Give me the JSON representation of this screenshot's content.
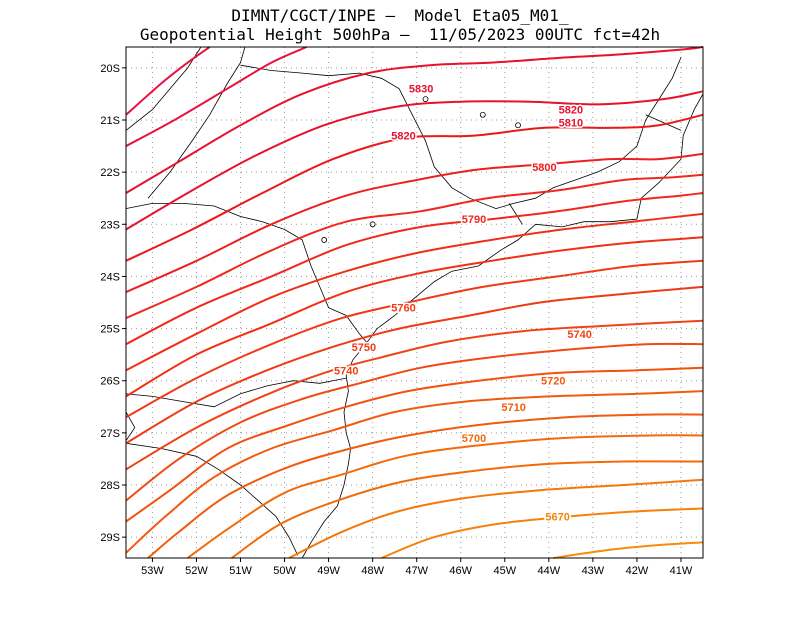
{
  "title": {
    "line1": "DIMNT/CGCT/INPE –  Model Eta05_M01_",
    "line2": "Geopotential Height 500hPa –  11/05/2023 00UTC fct=42h"
  },
  "map": {
    "lon_range": [
      -53.6,
      -40.5
    ],
    "lat_range": [
      -29.4,
      -19.6
    ],
    "lon_ticks": [
      {
        "value": -53,
        "label": "53W"
      },
      {
        "value": -52,
        "label": "52W"
      },
      {
        "value": -51,
        "label": "51W"
      },
      {
        "value": -50,
        "label": "50W"
      },
      {
        "value": -49,
        "label": "49W"
      },
      {
        "value": -48,
        "label": "48W"
      },
      {
        "value": -47,
        "label": "47W"
      },
      {
        "value": -46,
        "label": "46W"
      },
      {
        "value": -45,
        "label": "45W"
      },
      {
        "value": -44,
        "label": "44W"
      },
      {
        "value": -43,
        "label": "43W"
      },
      {
        "value": -42,
        "label": "42W"
      },
      {
        "value": -41,
        "label": "41W"
      }
    ],
    "lat_ticks": [
      {
        "value": -20,
        "label": "20S"
      },
      {
        "value": -21,
        "label": "21S"
      },
      {
        "value": -22,
        "label": "22S"
      },
      {
        "value": -23,
        "label": "23S"
      },
      {
        "value": -24,
        "label": "24S"
      },
      {
        "value": -25,
        "label": "25S"
      },
      {
        "value": -26,
        "label": "26S"
      },
      {
        "value": -27,
        "label": "27S"
      },
      {
        "value": -28,
        "label": "28S"
      },
      {
        "value": -29,
        "label": "29S"
      }
    ],
    "grid": "dotted",
    "contour_interval": 10,
    "contour_labels": [
      {
        "text": "5830",
        "color": "#e8112d",
        "lon": -46.9,
        "lat": -20.4
      },
      {
        "text": "5820",
        "color": "#e8112d",
        "lon": -43.5,
        "lat": -20.8
      },
      {
        "text": "5820",
        "color": "#e8112d",
        "lon": -47.3,
        "lat": -21.3
      },
      {
        "text": "5810",
        "color": "#e8112d",
        "lon": -43.5,
        "lat": -21.05
      },
      {
        "text": "5800",
        "color": "#ee1f1f",
        "lon": -44.1,
        "lat": -21.9
      },
      {
        "text": "5790",
        "color": "#f0281e",
        "lon": -45.7,
        "lat": -22.9
      },
      {
        "text": "5760",
        "color": "#f03a16",
        "lon": -47.3,
        "lat": -24.6
      },
      {
        "text": "5750",
        "color": "#f03a16",
        "lon": -48.2,
        "lat": -25.35
      },
      {
        "text": "5740",
        "color": "#f04216",
        "lon": -48.6,
        "lat": -25.8
      },
      {
        "text": "5740",
        "color": "#f04216",
        "lon": -43.3,
        "lat": -25.1
      },
      {
        "text": "5720",
        "color": "#f25a10",
        "lon": -43.9,
        "lat": -26.0
      },
      {
        "text": "5710",
        "color": "#f25a10",
        "lon": -44.8,
        "lat": -26.5
      },
      {
        "text": "5700",
        "color": "#f36a0a",
        "lon": -45.7,
        "lat": -27.1
      },
      {
        "text": "5670",
        "color": "#f5820a",
        "lon": -43.8,
        "lat": -28.6
      }
    ],
    "contours": [
      {
        "color": "#ea1140",
        "points": [
          [
            -53.6,
            -20.9
          ],
          [
            -52.8,
            -20.3
          ],
          [
            -52.2,
            -19.9
          ],
          [
            -51.7,
            -19.6
          ]
        ]
      },
      {
        "color": "#ea1140",
        "points": [
          [
            -53.6,
            -21.5
          ],
          [
            -52.5,
            -21.0
          ],
          [
            -51.3,
            -20.4
          ],
          [
            -50.3,
            -19.9
          ],
          [
            -49.5,
            -19.6
          ]
        ]
      },
      {
        "color": "#e8112d",
        "points": [
          [
            -53.6,
            -22.4
          ],
          [
            -52.4,
            -21.8
          ],
          [
            -51.0,
            -21.1
          ],
          [
            -49.6,
            -20.5
          ],
          [
            -48.1,
            -20.1
          ],
          [
            -46.7,
            -19.95
          ],
          [
            -45.3,
            -19.9
          ],
          [
            -43.6,
            -19.8
          ],
          [
            -42.5,
            -19.75
          ],
          [
            -41.0,
            -19.65
          ],
          [
            -40.5,
            -19.6
          ]
        ]
      },
      {
        "color": "#e8112d",
        "points": [
          [
            -53.6,
            -23.1
          ],
          [
            -52.2,
            -22.4
          ],
          [
            -50.7,
            -21.7
          ],
          [
            -49.1,
            -21.1
          ],
          [
            -47.5,
            -20.75
          ],
          [
            -46.0,
            -20.65
          ],
          [
            -44.4,
            -20.65
          ],
          [
            -42.9,
            -20.7
          ],
          [
            -41.4,
            -20.6
          ],
          [
            -40.5,
            -20.45
          ]
        ]
      },
      {
        "color": "#ea1818",
        "points": [
          [
            -53.6,
            -23.7
          ],
          [
            -52.1,
            -23.1
          ],
          [
            -50.5,
            -22.4
          ],
          [
            -48.9,
            -21.75
          ],
          [
            -47.3,
            -21.35
          ],
          [
            -45.7,
            -21.3
          ],
          [
            -44.1,
            -21.15
          ],
          [
            -42.5,
            -21.15
          ],
          [
            -41.5,
            -21.1
          ],
          [
            -40.5,
            -20.9
          ]
        ]
      },
      {
        "color": "#ee1f1f",
        "points": [
          [
            -53.6,
            -24.3
          ],
          [
            -52.0,
            -23.7
          ],
          [
            -50.3,
            -23.0
          ],
          [
            -48.6,
            -22.45
          ],
          [
            -47.0,
            -22.15
          ],
          [
            -45.6,
            -21.95
          ],
          [
            -44.1,
            -21.85
          ],
          [
            -42.6,
            -21.75
          ],
          [
            -41.5,
            -21.75
          ],
          [
            -40.5,
            -21.65
          ]
        ]
      },
      {
        "color": "#f0281e",
        "points": [
          [
            -53.6,
            -24.8
          ],
          [
            -52.0,
            -24.2
          ],
          [
            -50.3,
            -23.5
          ],
          [
            -48.6,
            -22.95
          ],
          [
            -46.9,
            -22.75
          ],
          [
            -45.4,
            -22.5
          ],
          [
            -43.8,
            -22.35
          ],
          [
            -42.3,
            -22.15
          ],
          [
            -41.2,
            -22.1
          ],
          [
            -40.5,
            -22.05
          ]
        ]
      },
      {
        "color": "#f0281e",
        "points": [
          [
            -53.6,
            -25.3
          ],
          [
            -52.0,
            -24.6
          ],
          [
            -50.3,
            -24.0
          ],
          [
            -48.6,
            -23.4
          ],
          [
            -46.9,
            -23.05
          ],
          [
            -45.3,
            -22.9
          ],
          [
            -43.8,
            -22.75
          ],
          [
            -42.2,
            -22.55
          ],
          [
            -41.0,
            -22.45
          ],
          [
            -40.5,
            -22.4
          ]
        ]
      },
      {
        "color": "#f03016",
        "points": [
          [
            -53.6,
            -25.8
          ],
          [
            -52.0,
            -25.1
          ],
          [
            -50.3,
            -24.4
          ],
          [
            -48.6,
            -23.9
          ],
          [
            -47.0,
            -23.55
          ],
          [
            -45.3,
            -23.3
          ],
          [
            -43.7,
            -23.1
          ],
          [
            -42.1,
            -22.95
          ],
          [
            -40.5,
            -22.8
          ]
        ]
      },
      {
        "color": "#f03016",
        "points": [
          [
            -53.6,
            -26.3
          ],
          [
            -52.0,
            -25.5
          ],
          [
            -50.3,
            -24.9
          ],
          [
            -48.6,
            -24.3
          ],
          [
            -47.0,
            -23.95
          ],
          [
            -45.3,
            -23.7
          ],
          [
            -43.7,
            -23.5
          ],
          [
            -42.1,
            -23.35
          ],
          [
            -40.5,
            -23.25
          ]
        ]
      },
      {
        "color": "#f03a16",
        "points": [
          [
            -53.6,
            -26.7
          ],
          [
            -52.0,
            -25.95
          ],
          [
            -50.3,
            -25.3
          ],
          [
            -48.7,
            -24.8
          ],
          [
            -47.2,
            -24.5
          ],
          [
            -45.5,
            -24.2
          ],
          [
            -43.8,
            -24.0
          ],
          [
            -42.1,
            -23.8
          ],
          [
            -40.5,
            -23.7
          ]
        ]
      },
      {
        "color": "#f03a16",
        "points": [
          [
            -53.6,
            -27.2
          ],
          [
            -52.0,
            -26.4
          ],
          [
            -50.4,
            -25.8
          ],
          [
            -48.9,
            -25.35
          ],
          [
            -47.4,
            -25.0
          ],
          [
            -45.8,
            -24.75
          ],
          [
            -44.2,
            -24.5
          ],
          [
            -42.5,
            -24.35
          ],
          [
            -40.5,
            -24.2
          ]
        ]
      },
      {
        "color": "#f04216",
        "points": [
          [
            -53.6,
            -27.7
          ],
          [
            -52.0,
            -26.9
          ],
          [
            -50.5,
            -26.3
          ],
          [
            -49.1,
            -25.85
          ],
          [
            -47.8,
            -25.55
          ],
          [
            -46.3,
            -25.25
          ],
          [
            -44.6,
            -25.05
          ],
          [
            -42.8,
            -24.95
          ],
          [
            -40.5,
            -24.85
          ]
        ]
      },
      {
        "color": "#f04a14",
        "points": [
          [
            -53.6,
            -28.3
          ],
          [
            -52.4,
            -27.5
          ],
          [
            -51.0,
            -26.8
          ],
          [
            -49.6,
            -26.35
          ],
          [
            -48.3,
            -26.05
          ],
          [
            -46.9,
            -25.75
          ],
          [
            -45.3,
            -25.55
          ],
          [
            -43.5,
            -25.4
          ],
          [
            -41.8,
            -25.3
          ],
          [
            -40.5,
            -25.3
          ]
        ]
      },
      {
        "color": "#f25210",
        "points": [
          [
            -53.6,
            -28.7
          ],
          [
            -52.6,
            -28.1
          ],
          [
            -51.3,
            -27.3
          ],
          [
            -49.9,
            -26.85
          ],
          [
            -48.6,
            -26.5
          ],
          [
            -47.2,
            -26.2
          ],
          [
            -45.6,
            -26.0
          ],
          [
            -43.8,
            -25.85
          ],
          [
            -42.0,
            -25.8
          ],
          [
            -40.5,
            -25.75
          ]
        ]
      },
      {
        "color": "#f25a10",
        "points": [
          [
            -53.6,
            -29.3
          ],
          [
            -52.7,
            -28.6
          ],
          [
            -51.6,
            -27.85
          ],
          [
            -50.3,
            -27.3
          ],
          [
            -48.9,
            -26.95
          ],
          [
            -47.5,
            -26.6
          ],
          [
            -45.9,
            -26.4
          ],
          [
            -44.0,
            -26.3
          ],
          [
            -42.0,
            -26.25
          ],
          [
            -40.5,
            -26.2
          ]
        ]
      },
      {
        "color": "#f25a10",
        "points": [
          [
            -53.1,
            -29.4
          ],
          [
            -52.4,
            -28.9
          ],
          [
            -51.3,
            -28.2
          ],
          [
            -49.9,
            -27.65
          ],
          [
            -48.5,
            -27.3
          ],
          [
            -47.2,
            -27.05
          ],
          [
            -45.6,
            -26.85
          ],
          [
            -43.6,
            -26.7
          ],
          [
            -41.7,
            -26.65
          ],
          [
            -40.5,
            -26.65
          ]
        ]
      },
      {
        "color": "#f36a0a",
        "points": [
          [
            -52.2,
            -29.4
          ],
          [
            -51.3,
            -28.85
          ],
          [
            -50.0,
            -28.15
          ],
          [
            -48.7,
            -27.8
          ],
          [
            -47.3,
            -27.45
          ],
          [
            -45.7,
            -27.25
          ],
          [
            -43.7,
            -27.1
          ],
          [
            -41.7,
            -27.05
          ],
          [
            -40.5,
            -27.05
          ]
        ]
      },
      {
        "color": "#f36a0a",
        "points": [
          [
            -51.2,
            -29.4
          ],
          [
            -50.1,
            -28.75
          ],
          [
            -48.8,
            -28.3
          ],
          [
            -47.4,
            -27.95
          ],
          [
            -45.9,
            -27.75
          ],
          [
            -44.1,
            -27.6
          ],
          [
            -42.3,
            -27.55
          ],
          [
            -40.5,
            -27.55
          ]
        ]
      },
      {
        "color": "#f5780a",
        "points": [
          [
            -49.9,
            -29.4
          ],
          [
            -48.7,
            -28.9
          ],
          [
            -47.4,
            -28.5
          ],
          [
            -45.9,
            -28.25
          ],
          [
            -44.2,
            -28.1
          ],
          [
            -42.3,
            -28.0
          ],
          [
            -40.5,
            -27.9
          ]
        ]
      },
      {
        "color": "#f5820a",
        "points": [
          [
            -47.8,
            -29.4
          ],
          [
            -46.6,
            -29.0
          ],
          [
            -45.2,
            -28.75
          ],
          [
            -43.5,
            -28.6
          ],
          [
            -41.9,
            -28.5
          ],
          [
            -40.5,
            -28.45
          ]
        ]
      },
      {
        "color": "#f78c0a",
        "points": [
          [
            -43.9,
            -29.4
          ],
          [
            -42.7,
            -29.25
          ],
          [
            -41.5,
            -29.15
          ],
          [
            -40.5,
            -29.1
          ]
        ]
      }
    ],
    "coastline_color": "#000000"
  }
}
